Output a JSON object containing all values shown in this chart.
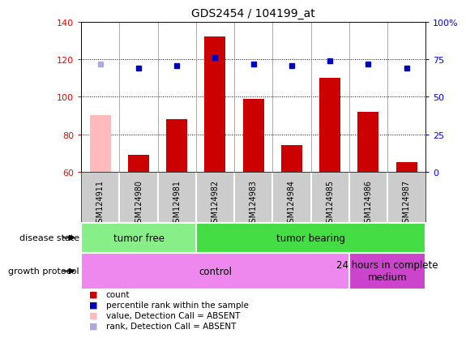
{
  "title": "GDS2454 / 104199_at",
  "samples": [
    "GSM124911",
    "GSM124980",
    "GSM124981",
    "GSM124982",
    "GSM124983",
    "GSM124984",
    "GSM124985",
    "GSM124986",
    "GSM124987"
  ],
  "count_values": [
    90,
    69,
    88,
    132,
    99,
    74,
    110,
    92,
    65
  ],
  "count_absent": [
    true,
    false,
    false,
    false,
    false,
    false,
    false,
    false,
    false
  ],
  "rank_values": [
    72,
    69,
    71,
    76,
    72,
    71,
    74,
    72,
    69
  ],
  "rank_absent": [
    true,
    false,
    false,
    false,
    false,
    false,
    false,
    false,
    false
  ],
  "ylim_left": [
    60,
    140
  ],
  "ylim_right": [
    0,
    100
  ],
  "yticks_left": [
    60,
    80,
    100,
    120,
    140
  ],
  "ytick_labels_right": [
    "0",
    "25",
    "50",
    "75",
    "100%"
  ],
  "bar_color": "#cc0000",
  "bar_absent_color": "#ffbbbb",
  "rank_color": "#0000bb",
  "rank_absent_color": "#aaaadd",
  "gray_box_color": "#cccccc",
  "disease_state_labels": [
    {
      "label": "tumor free",
      "start": 0,
      "end": 3,
      "color": "#88ee88"
    },
    {
      "label": "tumor bearing",
      "start": 3,
      "end": 9,
      "color": "#44dd44"
    }
  ],
  "growth_protocol_labels": [
    {
      "label": "control",
      "start": 0,
      "end": 7,
      "color": "#ee88ee"
    },
    {
      "label": "24 hours in complete\nmedium",
      "start": 7,
      "end": 9,
      "color": "#cc44cc"
    }
  ],
  "disease_state_row_label": "disease state",
  "growth_protocol_row_label": "growth protocol",
  "legend_items": [
    {
      "color": "#cc0000",
      "label": "count"
    },
    {
      "color": "#0000bb",
      "label": "percentile rank within the sample"
    },
    {
      "color": "#ffbbbb",
      "label": "value, Detection Call = ABSENT"
    },
    {
      "color": "#aaaadd",
      "label": "rank, Detection Call = ABSENT"
    }
  ]
}
